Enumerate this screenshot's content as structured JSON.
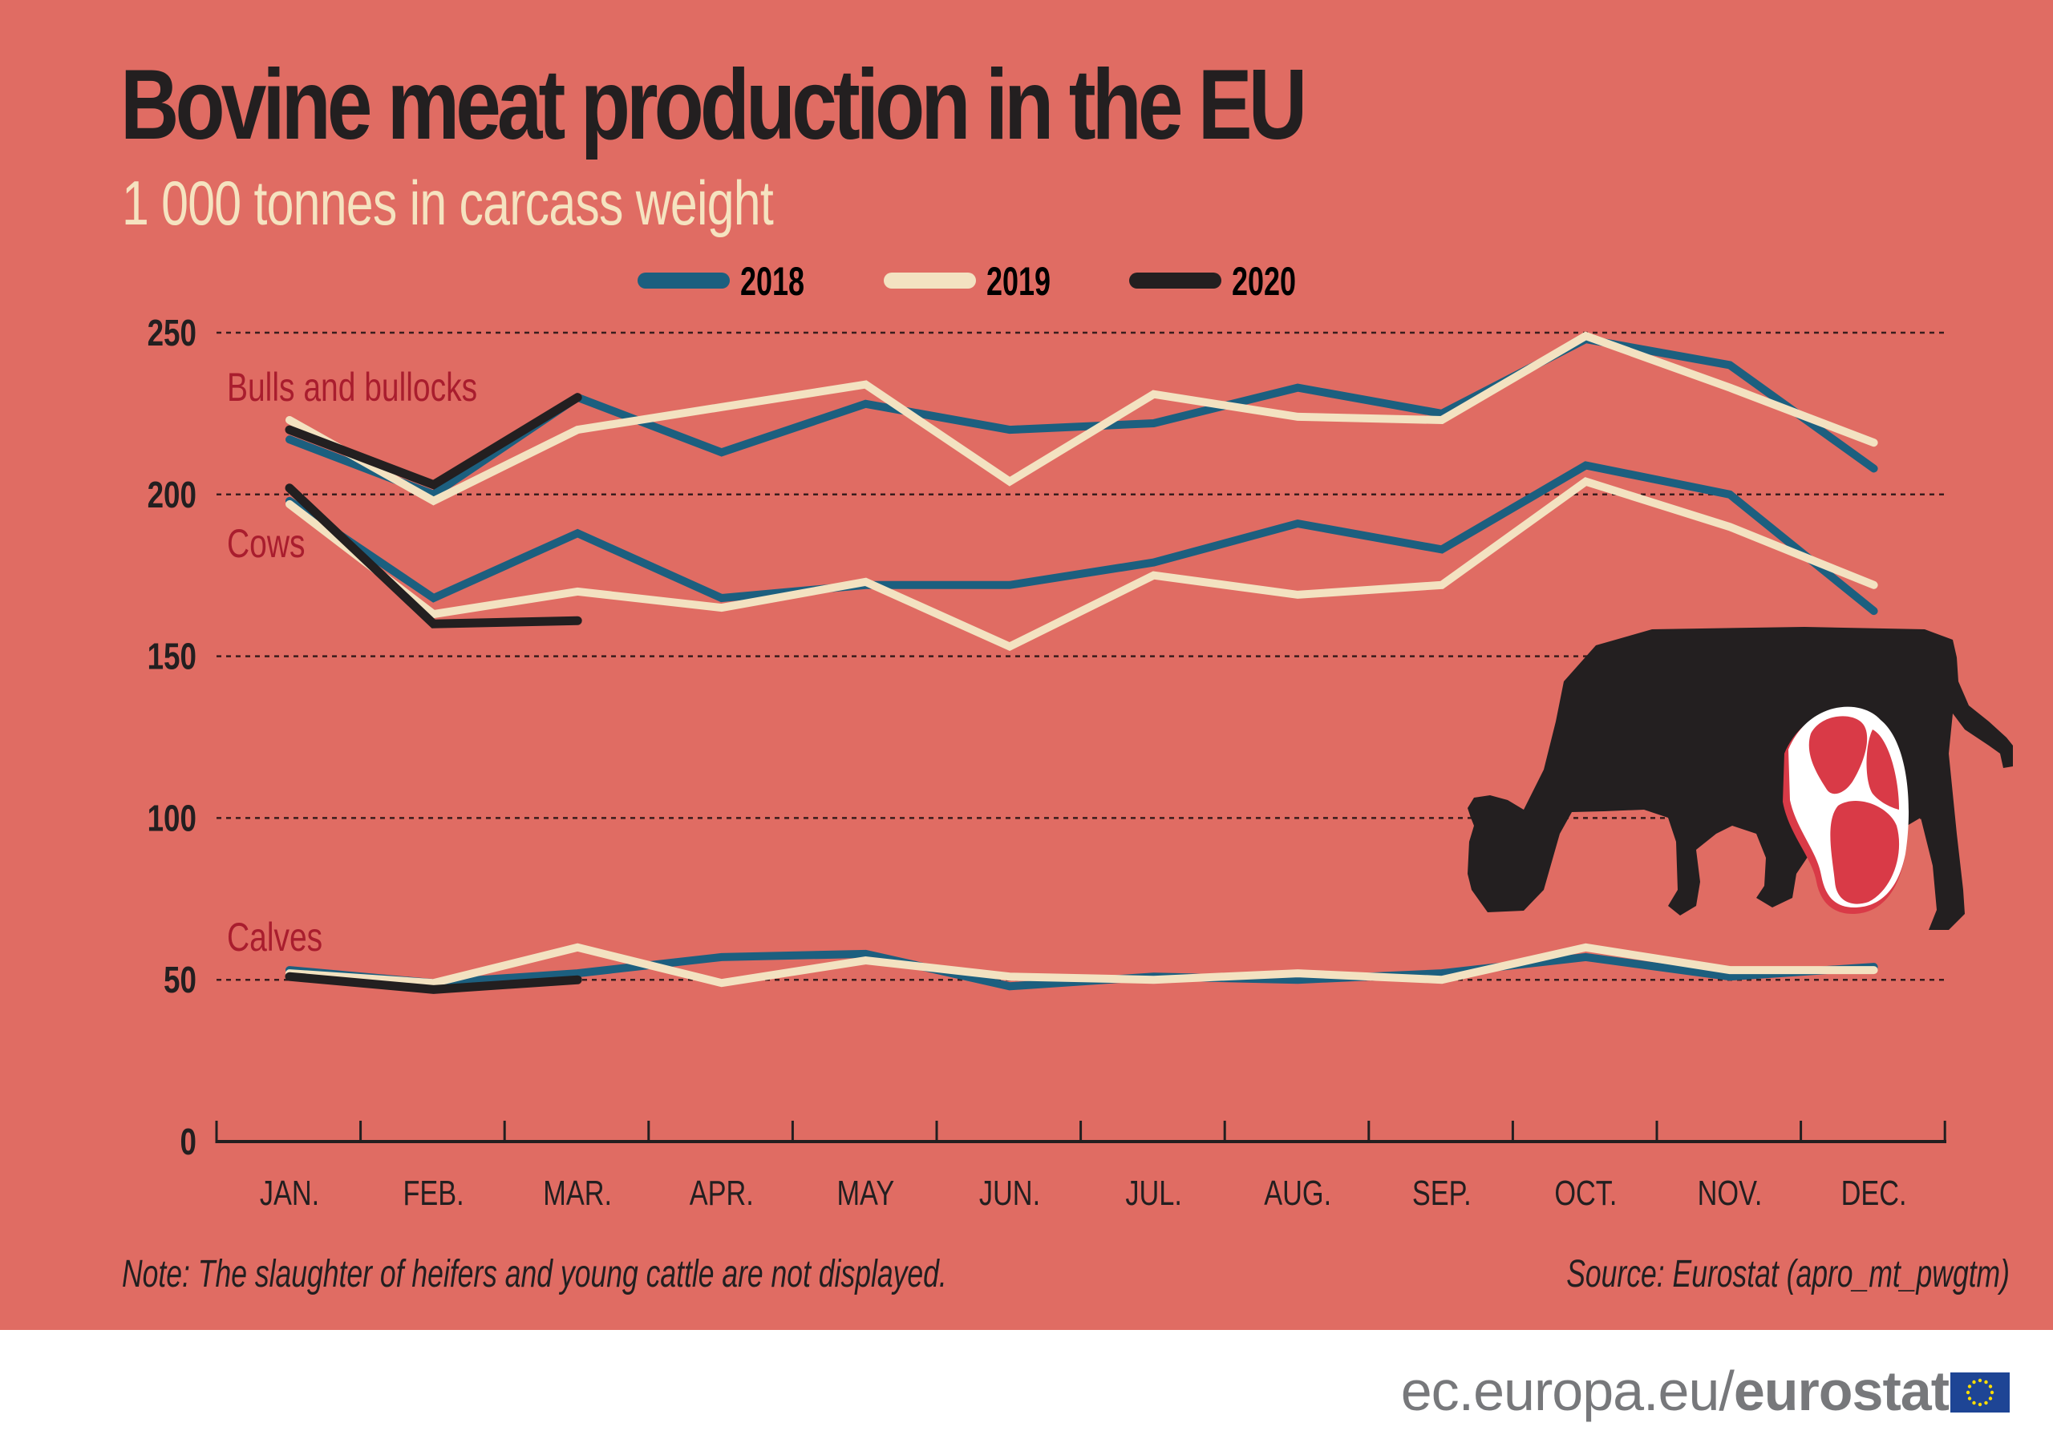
{
  "title": "Bovine meat production in the EU",
  "subtitle": "1 000 tonnes in carcass weight",
  "note": "Note: The slaughter of heifers and young cattle are not displayed.",
  "source": "Source: Eurostat (apro_mt_pwgtm)",
  "footer": {
    "url_prefix": "ec.europa.eu/",
    "url_brand": "eurostat",
    "flag_icon": "eu-flag-icon"
  },
  "illustration": {
    "icon": "grazing-cow-with-steak-icon"
  },
  "colors": {
    "background": "#e06c63",
    "2018": "#1c5f7f",
    "2019": "#f3e2c1",
    "2020": "#231f20",
    "group_label": "#a91d2e"
  },
  "chart_data": {
    "type": "line",
    "title": "Bovine meat production in the EU",
    "subtitle": "1 000 tonnes in carcass weight",
    "xlabel": "",
    "ylabel": "",
    "ylim": [
      0,
      250
    ],
    "yticks": [
      "0",
      "50",
      "100",
      "150",
      "200",
      "250"
    ],
    "ytick_values": [
      0,
      50,
      100,
      150,
      200,
      250
    ],
    "grid": "dotted horizontal",
    "legend": {
      "placement": "top-center",
      "entries": [
        "2018",
        "2019",
        "2020"
      ]
    },
    "categories": [
      "JAN.",
      "FEB.",
      "MAR.",
      "APR.",
      "MAY",
      "JUN.",
      "JUL.",
      "AUG.",
      "SEP.",
      "OCT.",
      "NOV.",
      "DEC."
    ],
    "groups": [
      {
        "label": "Bulls and bullocks",
        "series": [
          {
            "name": "2018",
            "values": [
              217,
              200,
              230,
              213,
              228,
              220,
              222,
              233,
              225,
              248,
              240,
              208
            ]
          },
          {
            "name": "2019",
            "values": [
              223,
              198,
              220,
              227,
              234,
              204,
              231,
              224,
              223,
              249,
              233,
              216
            ]
          },
          {
            "name": "2020",
            "values": [
              220,
              203,
              230
            ]
          }
        ]
      },
      {
        "label": "Cows",
        "series": [
          {
            "name": "2018",
            "values": [
              198,
              168,
              188,
              168,
              172,
              172,
              179,
              191,
              183,
              209,
              200,
              164
            ]
          },
          {
            "name": "2019",
            "values": [
              197,
              163,
              170,
              165,
              173,
              153,
              175,
              169,
              172,
              204,
              190,
              172
            ]
          },
          {
            "name": "2020",
            "values": [
              202,
              160,
              161
            ]
          }
        ]
      },
      {
        "label": "Calves",
        "series": [
          {
            "name": "2018",
            "values": [
              53,
              49,
              52,
              57,
              58,
              48,
              51,
              50,
              52,
              57,
              51,
              54
            ]
          },
          {
            "name": "2019",
            "values": [
              52,
              49,
              60,
              49,
              56,
              51,
              50,
              52,
              50,
              60,
              53,
              53
            ]
          },
          {
            "name": "2020",
            "values": [
              51,
              47,
              50
            ]
          }
        ]
      }
    ]
  }
}
